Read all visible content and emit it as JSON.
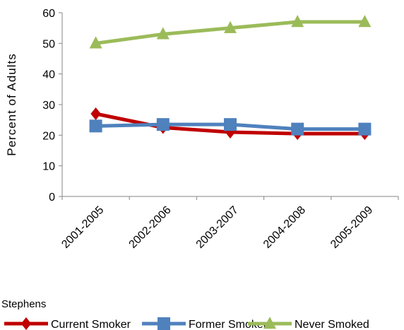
{
  "chart_data": {
    "type": "line",
    "ylabel": "Percent of Adults",
    "xlabel": "",
    "ylim": [
      0,
      60
    ],
    "yticks": [
      0,
      10,
      20,
      30,
      40,
      50,
      60
    ],
    "categories": [
      "2001-2005",
      "2002-2006",
      "2003-2007",
      "2004-2008",
      "2005-2009"
    ],
    "legend_title": "Stephens",
    "legend_position": "bottom",
    "grid": false,
    "series": [
      {
        "name": "Current Smoker",
        "values": [
          27,
          22.5,
          21,
          20.5,
          20.5
        ],
        "color": "#c00000",
        "marker": "diamond"
      },
      {
        "name": "Former Smoker",
        "values": [
          23,
          23.5,
          23.5,
          22,
          22
        ],
        "color": "#4f81bd",
        "marker": "square"
      },
      {
        "name": "Never Smoked",
        "values": [
          50,
          53,
          55,
          57,
          57
        ],
        "color": "#9bbb59",
        "marker": "triangle"
      }
    ]
  }
}
